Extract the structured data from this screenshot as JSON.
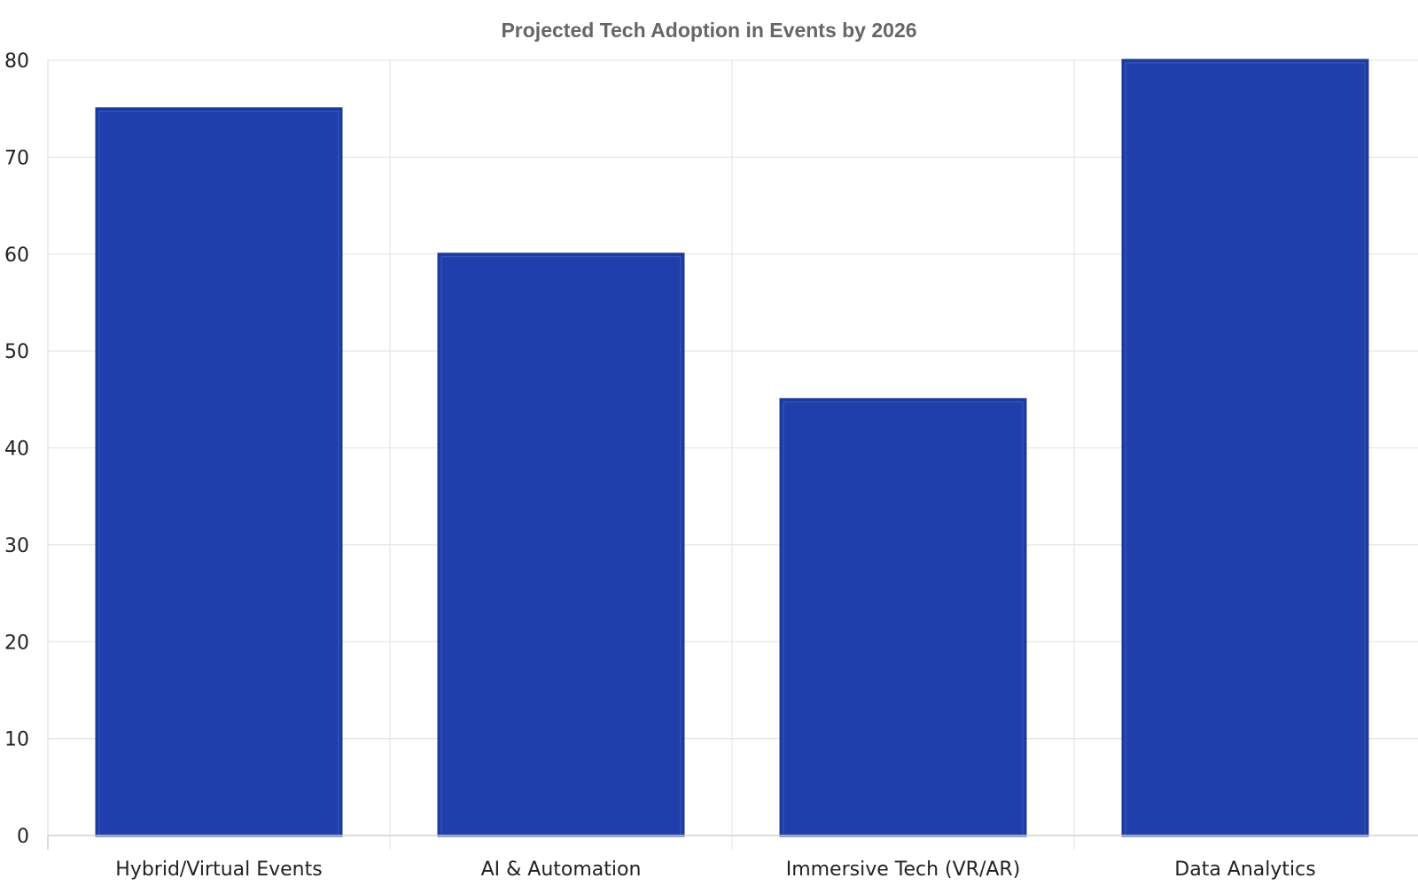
{
  "chart_data": {
    "type": "bar",
    "title": "Projected Tech Adoption in Events by 2026",
    "xlabel": "",
    "ylabel": "",
    "categories": [
      "Hybrid/Virtual Events",
      "AI & Automation",
      "Immersive Tech (VR/AR)",
      "Data Analytics"
    ],
    "values": [
      75,
      60,
      45,
      80
    ],
    "ylim": [
      0,
      80
    ],
    "yticks": [
      0,
      10,
      20,
      30,
      40,
      50,
      60,
      70,
      80
    ],
    "grid": true,
    "legend": "none",
    "bar_color": "#1f40ac",
    "bar_edge_color": "#1b3a9c"
  }
}
